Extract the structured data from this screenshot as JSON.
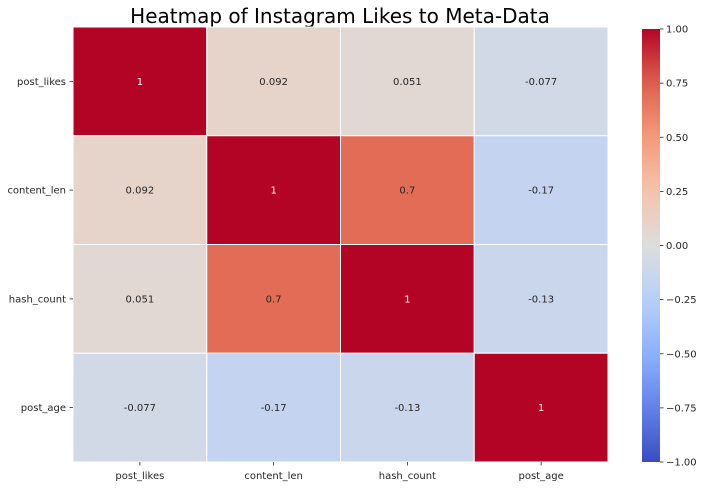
{
  "chart_data": {
    "type": "heatmap",
    "title": "Heatmap of Instagram Likes to Meta-Data",
    "x_categories": [
      "post_likes",
      "content_len",
      "hash_count",
      "post_age"
    ],
    "y_categories": [
      "post_likes",
      "content_len",
      "hash_count",
      "post_age"
    ],
    "values": [
      [
        1,
        0.092,
        0.051,
        -0.077
      ],
      [
        0.092,
        1,
        0.7,
        -0.17
      ],
      [
        0.051,
        0.7,
        1,
        -0.13
      ],
      [
        -0.077,
        -0.17,
        -0.13,
        1
      ]
    ],
    "value_labels": [
      [
        "1",
        "0.092",
        "0.051",
        "-0.077"
      ],
      [
        "0.092",
        "1",
        "0.7",
        "-0.17"
      ],
      [
        "0.051",
        "0.7",
        "1",
        "-0.13"
      ],
      [
        "-0.077",
        "-0.17",
        "-0.13",
        "1"
      ]
    ],
    "colormap": "coolwarm",
    "vmin": -1,
    "vmax": 1,
    "colorbar_ticks": [
      1,
      0.75,
      0.5,
      0.25,
      0,
      -0.25,
      -0.5,
      -0.75,
      -1
    ],
    "colorbar_tick_labels": [
      "1.00",
      "0.75",
      "0.50",
      "0.25",
      "0.00",
      "−0.25",
      "−0.50",
      "−0.75",
      "−1.00"
    ],
    "grid_line_color": "#ffffff",
    "xlabel": "",
    "ylabel": ""
  }
}
